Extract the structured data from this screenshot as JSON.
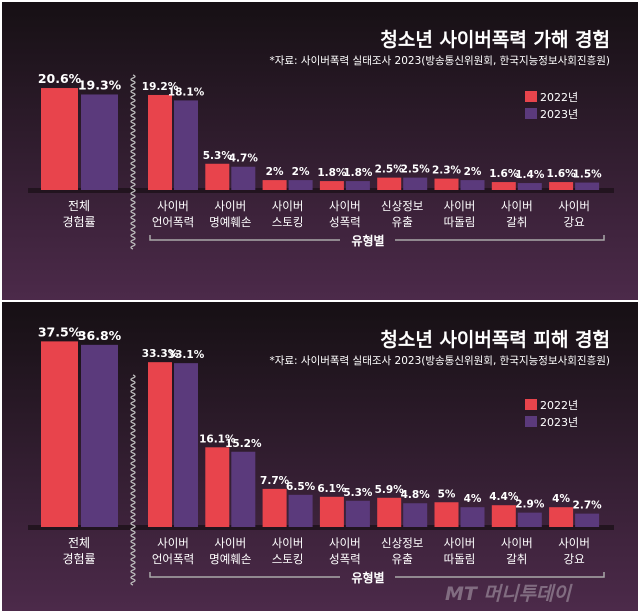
{
  "colors": {
    "2022": "#e8444c",
    "2023": "#5b3a7c",
    "bg_top": "#161014",
    "bg_bottom": "#4c2a4a"
  },
  "watermark": "MT 머니투데이",
  "chart_data": [
    {
      "type": "bar",
      "title": "청소년 사이버폭력 가해 경험",
      "source": "*자료: 사이버폭력 실태조사 2023(방송통신위원회, 한국지능정보사회진흥원)",
      "legend": [
        "2022년",
        "2023년"
      ],
      "legend_position": "top-right",
      "overall": {
        "label": [
          "전체",
          "경험률"
        ],
        "values": [
          20.6,
          19.3
        ],
        "labels": [
          "20.6%",
          "19.3%"
        ]
      },
      "group_label": "유형별",
      "categories": [
        [
          "사이버",
          "언어폭력"
        ],
        [
          "사이버",
          "명예훼손"
        ],
        [
          "사이버",
          "스토킹"
        ],
        [
          "사이버",
          "성폭력"
        ],
        [
          "신상정보",
          "유출"
        ],
        [
          "사이버",
          "따돌림"
        ],
        [
          "사이버",
          "갈취"
        ],
        [
          "사이버",
          "강요"
        ]
      ],
      "series": [
        {
          "name": "2022년",
          "values": [
            19.2,
            5.3,
            2,
            1.8,
            2.5,
            2.3,
            1.6,
            1.6
          ],
          "labels": [
            "19.2%",
            "5.3%",
            "2%",
            "1.8%",
            "2.5%",
            "2.3%",
            "1.6%",
            "1.6%"
          ]
        },
        {
          "name": "2023년",
          "values": [
            18.1,
            4.7,
            2,
            1.8,
            2.5,
            2,
            1.4,
            1.5
          ],
          "labels": [
            "18.1%",
            "4.7%",
            "2%",
            "1.8%",
            "2.5%",
            "2%",
            "1.4%",
            "1.5%"
          ]
        }
      ]
    },
    {
      "type": "bar",
      "title": "청소년 사이버폭력 피해 경험",
      "source": "*자료: 사이버폭력 실태조사 2023(방송통신위원회, 한국지능정보사회진흥원)",
      "legend": [
        "2022년",
        "2023년"
      ],
      "legend_position": "right",
      "overall": {
        "label": [
          "전체",
          "경험률"
        ],
        "values": [
          37.5,
          36.8
        ],
        "labels": [
          "37.5%",
          "36.8%"
        ]
      },
      "group_label": "유형별",
      "categories": [
        [
          "사이버",
          "언어폭력"
        ],
        [
          "사이버",
          "명예훼손"
        ],
        [
          "사이버",
          "스토킹"
        ],
        [
          "사이버",
          "성폭력"
        ],
        [
          "신상정보",
          "유출"
        ],
        [
          "사이버",
          "따돌림"
        ],
        [
          "사이버",
          "갈취"
        ],
        [
          "사이버",
          "강요"
        ]
      ],
      "series": [
        {
          "name": "2022년",
          "values": [
            33.3,
            16.1,
            7.7,
            6.1,
            5.9,
            5,
            4.4,
            4
          ],
          "labels": [
            "33.3%",
            "16.1%",
            "7.7%",
            "6.1%",
            "5.9%",
            "5%",
            "4.4%",
            "4%"
          ]
        },
        {
          "name": "2023년",
          "values": [
            33.1,
            15.2,
            6.5,
            5.3,
            4.8,
            4,
            2.9,
            2.7
          ],
          "labels": [
            "33.1%",
            "15.2%",
            "6.5%",
            "5.3%",
            "4.8%",
            "4%",
            "2.9%",
            "2.7%"
          ]
        }
      ]
    }
  ]
}
